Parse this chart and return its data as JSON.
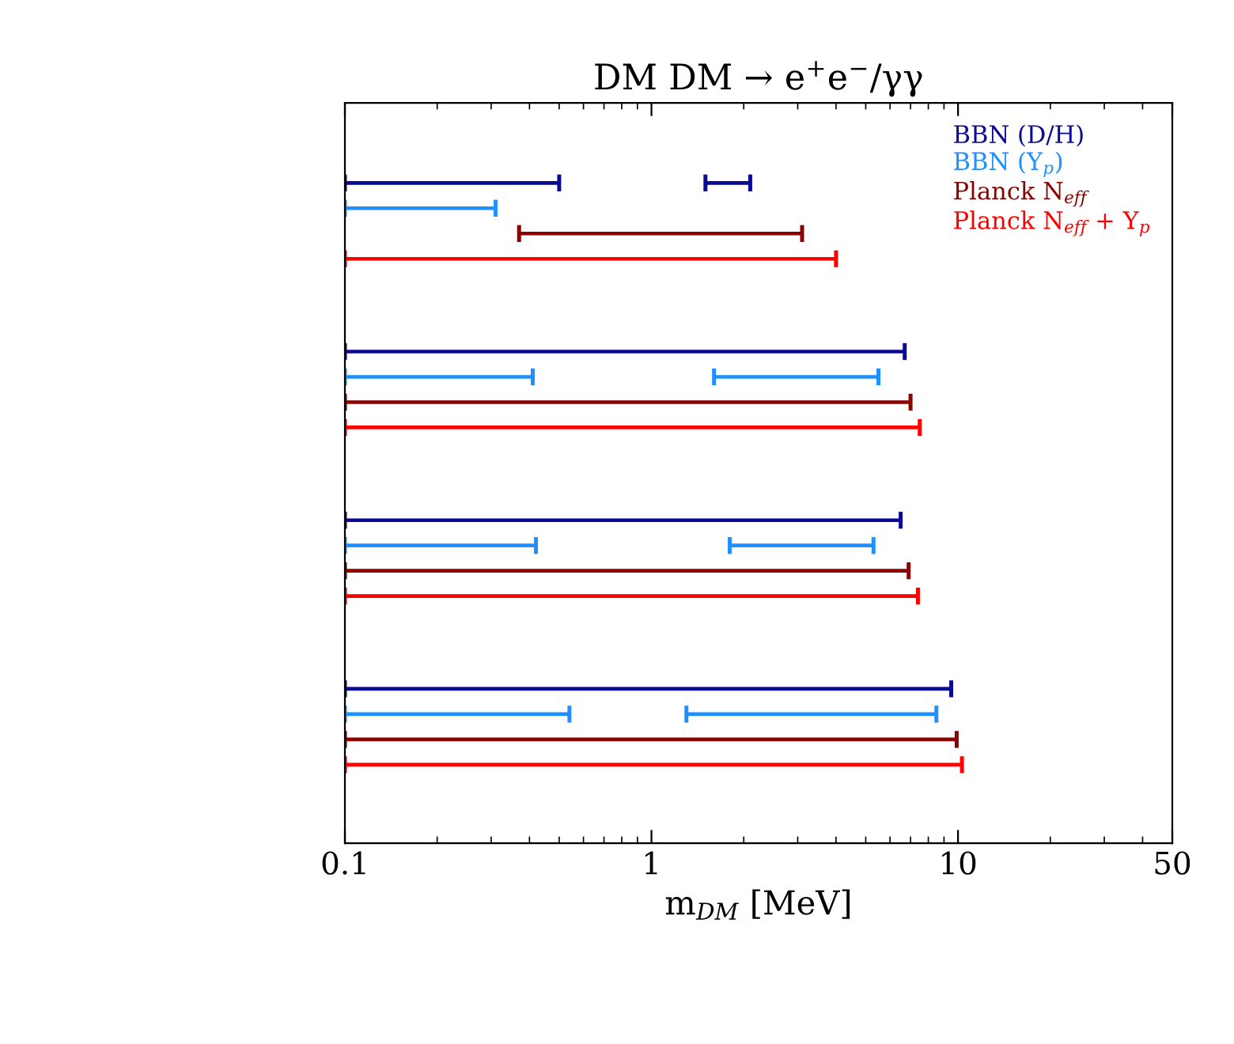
{
  "chart_data": {
    "type": "bar",
    "orientation": "horizontal",
    "title": "DM DM → e$^{+}$e$^{−}$/γγ",
    "xlabel": "m$_{DM}$ [MeV]",
    "categories": [
      null,
      null,
      null,
      null
    ],
    "log": "x",
    "xlim": [
      0.1,
      50
    ],
    "xticks": [
      0.1,
      1,
      10,
      50
    ],
    "legend": "top right",
    "grid": false,
    "series": [
      {
        "name": "BBN (D/H)",
        "color": "#0a0a96",
        "base": [
          0.1,
          0.1,
          0.1,
          0.1
        ],
        "values": [
          0.4,
          6.6,
          6.4,
          9.4
        ]
      },
      {
        "name": "BBN (Y$_{p}$)",
        "color": "#1e90ff",
        "base": [
          0.1,
          0.1,
          0.1,
          0.1
        ],
        "values": [
          0.21,
          0.31,
          0.32,
          0.44
        ]
      },
      {
        "name": "Planck N$_{eff}$",
        "color": "#8b0000",
        "base": [
          0.37,
          0.1,
          0.1,
          0.1
        ],
        "values": [
          2.73,
          6.9,
          6.8,
          9.8
        ]
      },
      {
        "name": "Planck N$_{eff}$ + Y$_{p}$",
        "color": "#ff0000",
        "base": [
          0.1,
          0.1,
          0.1,
          0.1
        ],
        "values": [
          3.9,
          7.4,
          7.3,
          10.2
        ]
      },
      {
        "color": "#0a0a96",
        "base": [
          1.5,
          null,
          null,
          null
        ],
        "values": [
          0.6,
          null,
          null,
          null
        ]
      },
      {
        "color": "#1e90ff",
        "base": [
          null,
          1.6,
          1.8,
          1.3
        ],
        "values": [
          null,
          3.9,
          3.5,
          7.2
        ]
      }
    ]
  }
}
